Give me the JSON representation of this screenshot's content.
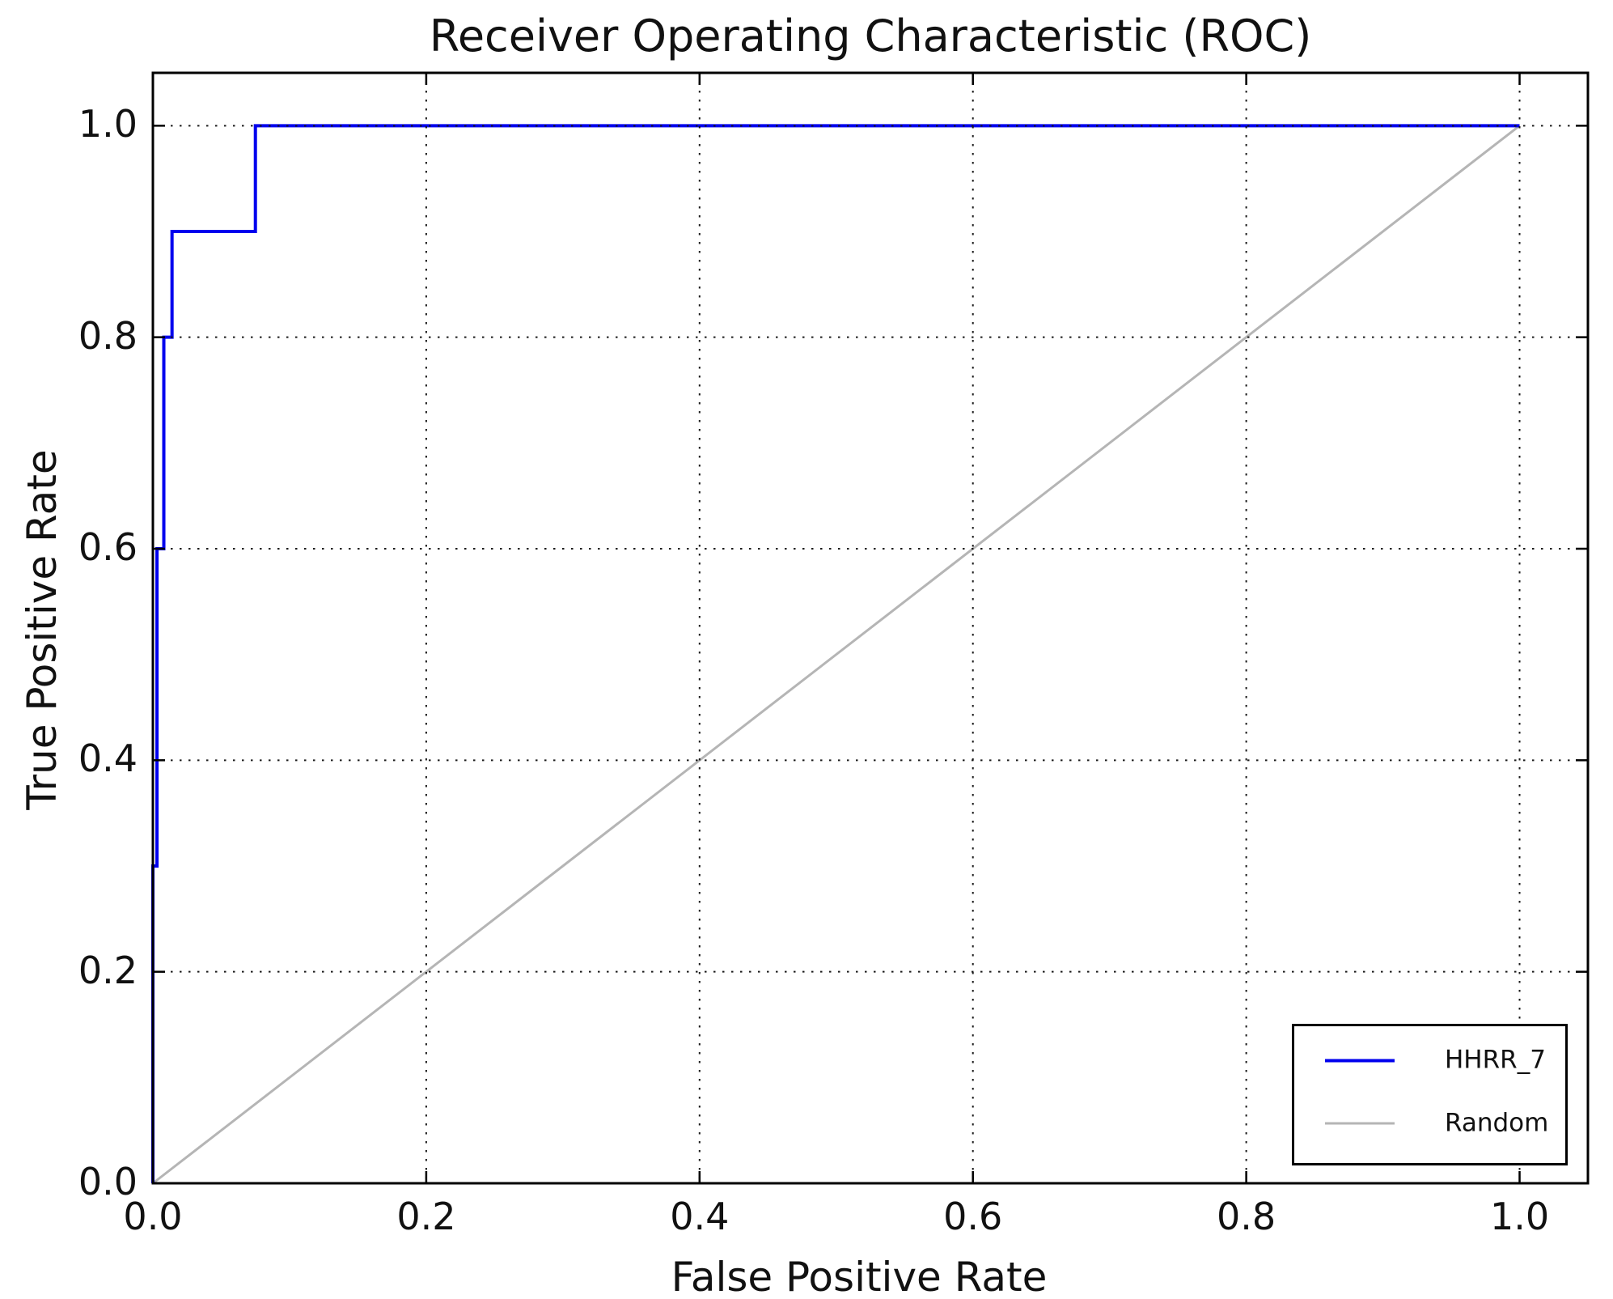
{
  "title": "Receiver Operating Characteristic (ROC)",
  "axes": {
    "xlabel": "False Positive Rate",
    "ylabel": "True Positive Rate"
  },
  "chart_data": {
    "type": "line",
    "title": "Receiver Operating Characteristic (ROC)",
    "xlabel": "False Positive Rate",
    "ylabel": "True Positive Rate",
    "xlim": [
      0,
      1.05
    ],
    "ylim": [
      0,
      1.05
    ],
    "x_ticks": [
      0.0,
      0.2,
      0.4,
      0.6,
      0.8,
      1.0
    ],
    "y_ticks": [
      0.0,
      0.2,
      0.4,
      0.6,
      0.8,
      1.0
    ],
    "x_tick_labels": [
      "0.0",
      "0.2",
      "0.4",
      "0.6",
      "0.8",
      "1.0"
    ],
    "y_tick_labels": [
      "0.0",
      "0.2",
      "0.4",
      "0.6",
      "0.8",
      "1.0"
    ],
    "grid": {
      "on": true,
      "style": "dotted",
      "color": "#1a1a1a"
    },
    "legend_position": "lower right",
    "series": [
      {
        "name": "HHRR_7",
        "color": "#0000ee",
        "line_width": 4,
        "x": [
          0.0,
          0.0,
          0.003,
          0.003,
          0.008,
          0.008,
          0.014,
          0.014,
          0.075,
          0.075,
          1.0
        ],
        "y": [
          0.0,
          0.3,
          0.3,
          0.6,
          0.6,
          0.8,
          0.8,
          0.9,
          0.9,
          1.0,
          1.0
        ]
      },
      {
        "name": "Random",
        "color": "#b5b5b5",
        "line_width": 3,
        "x": [
          0.0,
          1.0
        ],
        "y": [
          0.0,
          1.0
        ]
      }
    ]
  },
  "legend": {
    "entries": [
      {
        "label": "HHRR_7",
        "color": "#0000ee"
      },
      {
        "label": "Random",
        "color": "#b5b5b5"
      }
    ]
  }
}
